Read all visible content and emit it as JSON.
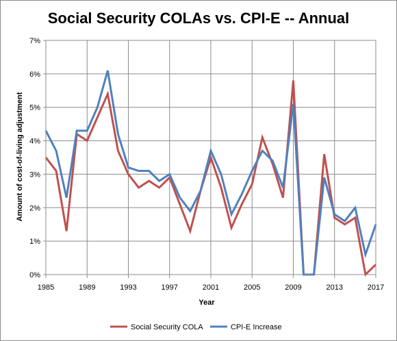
{
  "chart_data": {
    "type": "line",
    "title": "Social Security COLAs vs. CPI-E -- Annual",
    "xlabel": "Year",
    "ylabel": "Amount of cost-of-living adjustment",
    "xlim": [
      1985,
      2017
    ],
    "ylim": [
      0,
      7
    ],
    "x_ticks": [
      "1985",
      "1989",
      "1993",
      "1997",
      "2001",
      "2005",
      "2009",
      "2013",
      "2017"
    ],
    "y_ticks": [
      "0%",
      "1%",
      "2%",
      "3%",
      "4%",
      "5%",
      "6%",
      "7%"
    ],
    "grid": "horizontal and vertical major gridlines",
    "legend_position": "bottom",
    "x": [
      1985,
      1986,
      1987,
      1988,
      1989,
      1990,
      1991,
      1992,
      1993,
      1994,
      1995,
      1996,
      1997,
      1998,
      1999,
      2000,
      2001,
      2002,
      2003,
      2004,
      2005,
      2006,
      2007,
      2008,
      2009,
      2010,
      2011,
      2012,
      2013,
      2014,
      2015,
      2016,
      2017
    ],
    "series": [
      {
        "name": "Social Security COLA",
        "color": "#c0504d",
        "values": [
          3.5,
          3.1,
          1.3,
          4.2,
          4.0,
          4.7,
          5.4,
          3.7,
          3.0,
          2.6,
          2.8,
          2.6,
          2.9,
          2.1,
          1.3,
          2.5,
          3.5,
          2.6,
          1.4,
          2.1,
          2.7,
          4.1,
          3.3,
          2.3,
          5.8,
          0.0,
          0.0,
          3.6,
          1.7,
          1.5,
          1.7,
          0.0,
          0.3
        ]
      },
      {
        "name": "CPI-E Increase",
        "color": "#4f81bd",
        "values": [
          4.3,
          3.7,
          2.3,
          4.3,
          4.3,
          5.0,
          6.1,
          4.2,
          3.2,
          3.1,
          3.1,
          2.8,
          3.0,
          2.3,
          1.9,
          2.5,
          3.7,
          3.0,
          1.8,
          2.4,
          3.1,
          3.7,
          3.4,
          2.6,
          5.1,
          0.0,
          0.0,
          2.9,
          1.8,
          1.6,
          2.0,
          0.6,
          1.5
        ]
      }
    ]
  }
}
